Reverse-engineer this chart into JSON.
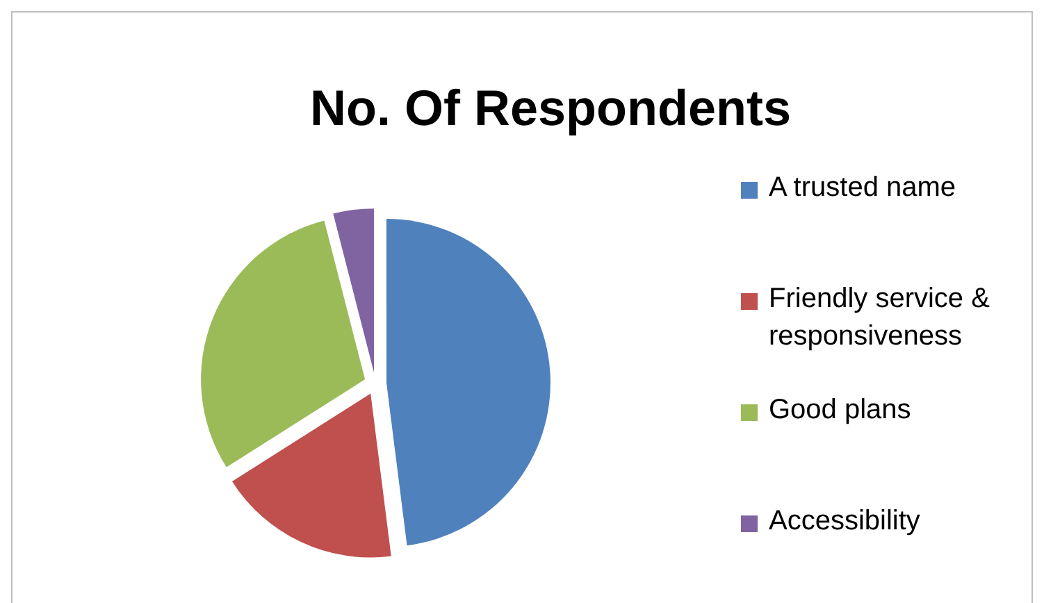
{
  "chart_data": {
    "type": "pie",
    "title": "No. Of Respondents",
    "categories": [
      "A trusted name",
      "Friendly service & responsiveness",
      "Good plans",
      "Accessibility"
    ],
    "values": [
      48,
      18,
      30,
      4
    ],
    "colors": [
      "#4f81bd",
      "#c0504d",
      "#9bbb59",
      "#8064a2"
    ],
    "legend": "right"
  }
}
